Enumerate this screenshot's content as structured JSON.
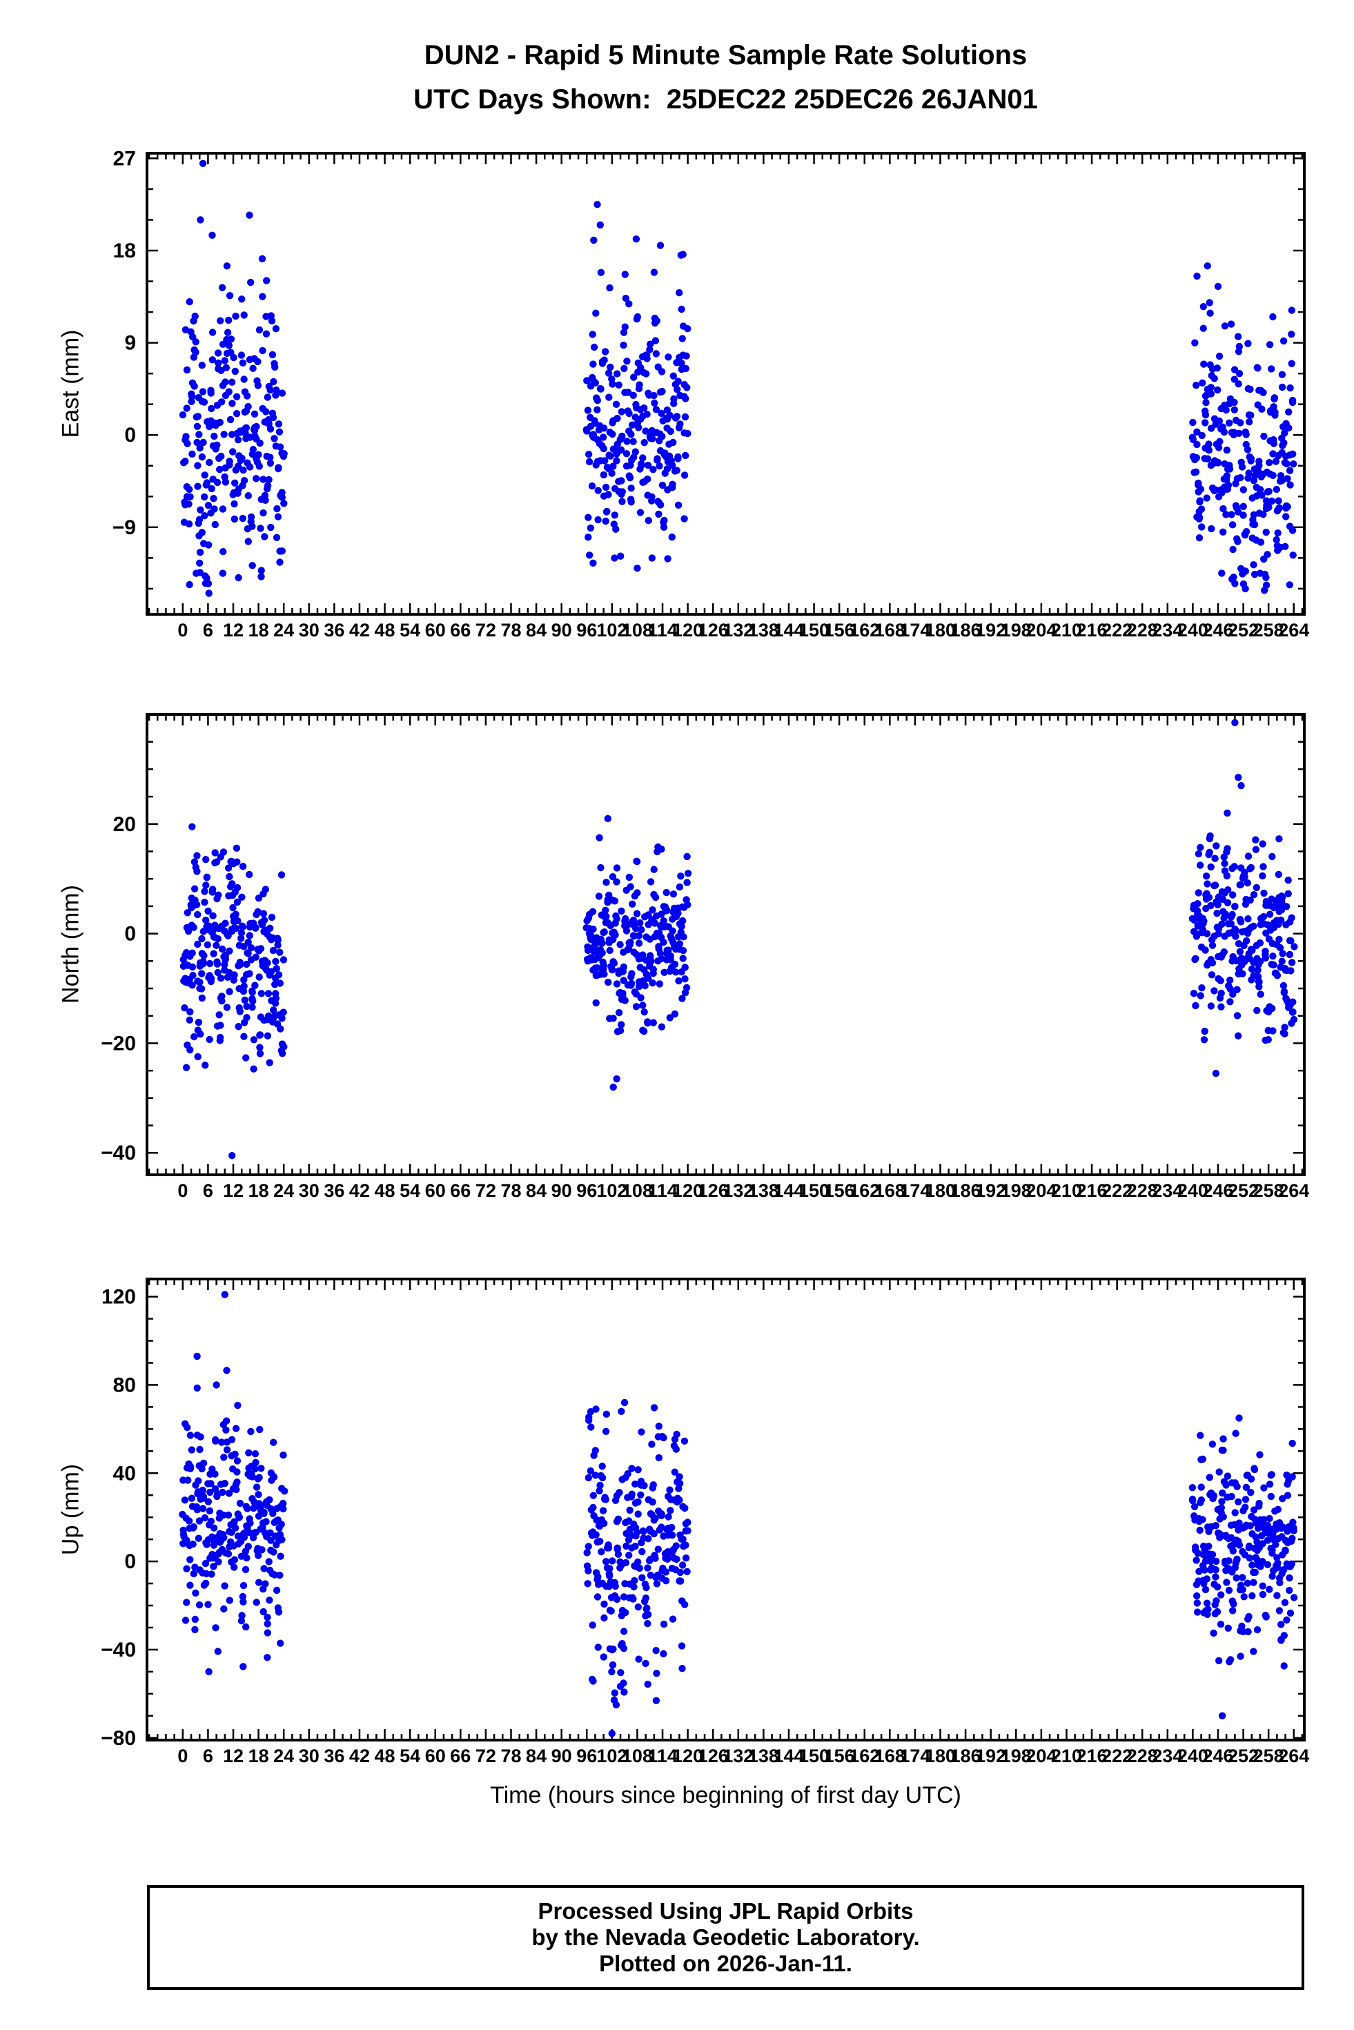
{
  "header": {
    "title": "DUN2 - Rapid 5 Minute Sample Rate Solutions",
    "subtitle": "UTC Days Shown:  25DEC22 25DEC26 26JAN01"
  },
  "chart_data": {
    "type": "scatter",
    "title": "DUN2 - Rapid 5 Minute Sample Rate Solutions",
    "subtitle": "UTC Days Shown:  25DEC22 25DEC26 26JAN01",
    "xlabel": "Time (hours since beginning of first day UTC)",
    "days_shown": [
      "25DEC22",
      "25DEC26",
      "26JAN01"
    ],
    "legend": "none",
    "grid": "off",
    "marker_color": "#0000ee",
    "marker_radius_px": 5.2,
    "xlim": [
      -8.5,
      266.5
    ],
    "x_major_ticks": [
      0,
      6,
      12,
      18,
      24,
      30,
      36,
      42,
      48,
      54,
      60,
      66,
      72,
      78,
      84,
      90,
      96,
      102,
      108,
      114,
      120,
      126,
      132,
      138,
      144,
      150,
      156,
      162,
      168,
      174,
      180,
      186,
      192,
      198,
      204,
      210,
      216,
      222,
      228,
      234,
      240,
      246,
      252,
      258,
      264
    ],
    "x_minor_step": 2,
    "panels": [
      {
        "name": "east",
        "ylabel": "East (mm)",
        "ylim": [
          -17.5,
          27.5
        ],
        "y_major_ticks": [
          -9,
          0,
          9,
          18,
          27
        ],
        "y_minor_step": 3,
        "clusters": [
          {
            "day": "25DEC22",
            "x_start": 0,
            "x_end": 24,
            "n": 288,
            "mean": 0,
            "std": 5.5,
            "y_min": -15.5,
            "y_max": 24,
            "seed": 11,
            "outliers": [
              [
                4.8,
                26.5
              ],
              [
                4.2,
                21
              ],
              [
                7.0,
                19.5
              ],
              [
                10.5,
                16.5
              ],
              [
                3.2,
                -13.5
              ],
              [
                6.1,
                -14.5
              ],
              [
                4.0,
                -12.5
              ]
            ]
          },
          {
            "day": "25DEC26",
            "x_start": 96,
            "x_end": 120,
            "n": 288,
            "mean": 0,
            "std": 5.2,
            "y_min": -13,
            "y_max": 20,
            "seed": 12,
            "outliers": [
              [
                98.5,
                22.5
              ],
              [
                99.2,
                20.5
              ],
              [
                113.5,
                18.5
              ],
              [
                97.5,
                -12.5
              ],
              [
                108.0,
                -13.0
              ],
              [
                111.5,
                -12.0
              ]
            ]
          },
          {
            "day": "26JAN01",
            "x_start": 240,
            "x_end": 264,
            "n": 288,
            "mean": -1.5,
            "std": 5.5,
            "y_min": -15.5,
            "y_max": 14,
            "seed": 13,
            "outliers": [
              [
                241.0,
                15.5
              ],
              [
                246.0,
                14.5
              ],
              [
                243.5,
                16.5
              ],
              [
                250.0,
                -14.5
              ],
              [
                252.5,
                -15.0
              ],
              [
                256.0,
                -13.5
              ]
            ]
          }
        ]
      },
      {
        "name": "north",
        "ylabel": "North (mm)",
        "ylim": [
          -44,
          40
        ],
        "y_major_ticks": [
          -40,
          -20,
          0,
          20
        ],
        "y_minor_step": 5,
        "clusters": [
          {
            "day": "25DEC22",
            "x_start": 0,
            "x_end": 24,
            "n": 288,
            "mean": -3,
            "std": 8,
            "y_min": -25,
            "y_max": 16,
            "seed": 21,
            "outliers": [
              [
                11.7,
                -40.5
              ],
              [
                2.2,
                19.5
              ],
              [
                5.3,
                -24.0
              ],
              [
                9.0,
                14.0
              ]
            ]
          },
          {
            "day": "25DEC26",
            "x_start": 96,
            "x_end": 120,
            "n": 288,
            "mean": -2,
            "std": 7,
            "y_min": -18,
            "y_max": 16,
            "seed": 22,
            "outliers": [
              [
                101.0,
                21.0
              ],
              [
                102.3,
                -28.0
              ],
              [
                103.1,
                -26.5
              ],
              [
                99.0,
                17.5
              ]
            ]
          },
          {
            "day": "26JAN01",
            "x_start": 240,
            "x_end": 264,
            "n": 288,
            "mean": -1,
            "std": 8,
            "y_min": -20,
            "y_max": 18,
            "seed": 23,
            "outliers": [
              [
                250.0,
                38.5
              ],
              [
                250.8,
                28.5
              ],
              [
                251.5,
                27.0
              ],
              [
                245.5,
                -25.5
              ],
              [
                248.2,
                22.0
              ]
            ]
          }
        ]
      },
      {
        "name": "up",
        "ylabel": "Up (mm)",
        "ylim": [
          -81,
          128
        ],
        "y_major_ticks": [
          -80,
          -40,
          0,
          40,
          80,
          120
        ],
        "y_minor_step": 10,
        "clusters": [
          {
            "day": "25DEC22",
            "x_start": 0,
            "x_end": 24,
            "n": 288,
            "mean": 15,
            "std": 22,
            "y_min": -52,
            "y_max": 92,
            "seed": 31,
            "outliers": [
              [
                10.0,
                121.0
              ],
              [
                3.4,
                93.0
              ],
              [
                6.2,
                -50.0
              ],
              [
                8.0,
                80.0
              ]
            ]
          },
          {
            "day": "25DEC26",
            "x_start": 96,
            "x_end": 120,
            "n": 288,
            "mean": 10,
            "std": 25,
            "y_min": -68,
            "y_max": 70,
            "seed": 32,
            "outliers": [
              [
                105.0,
                72.0
              ],
              [
                104.2,
                68.0
              ],
              [
                102.0,
                -78.0
              ],
              [
                103.0,
                -65.0
              ]
            ]
          },
          {
            "day": "26JAN01",
            "x_start": 240,
            "x_end": 264,
            "n": 288,
            "mean": 8,
            "std": 20,
            "y_min": -58,
            "y_max": 58,
            "seed": 33,
            "outliers": [
              [
                251.0,
                65.0
              ],
              [
                250.2,
                58.0
              ],
              [
                247.0,
                -70.0
              ],
              [
                246.2,
                -45.0
              ]
            ]
          }
        ]
      }
    ]
  },
  "footer": {
    "line1": "Processed Using JPL Rapid Orbits",
    "line2": "by the Nevada Geodetic Laboratory.",
    "line3": "Plotted on 2026-Jan-11."
  }
}
